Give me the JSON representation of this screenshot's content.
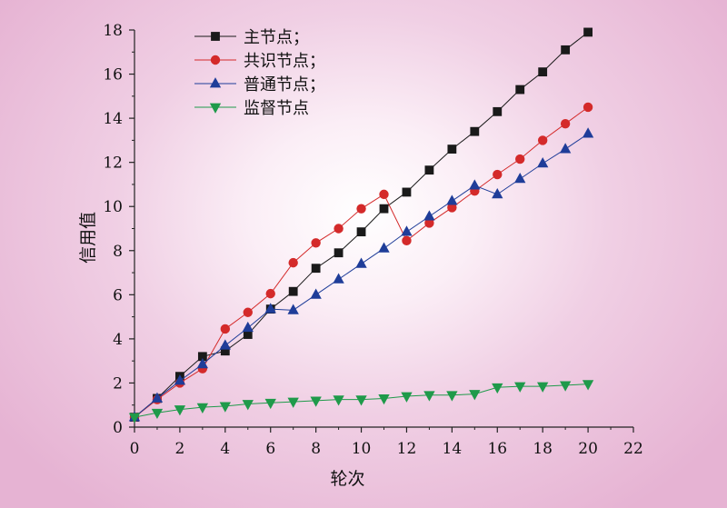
{
  "chart_data": {
    "type": "line",
    "title": "",
    "xlabel": "轮次",
    "ylabel": "信用值",
    "xlim": [
      0,
      22
    ],
    "ylim": [
      0,
      18
    ],
    "xticks": [
      0,
      2,
      4,
      6,
      8,
      10,
      12,
      14,
      16,
      18,
      20,
      22
    ],
    "yticks": [
      0,
      2,
      4,
      6,
      8,
      10,
      12,
      14,
      16,
      18
    ],
    "grid": false,
    "legend_position": "top-left",
    "x": [
      0,
      1,
      2,
      3,
      4,
      5,
      6,
      7,
      8,
      9,
      10,
      11,
      12,
      13,
      14,
      15,
      16,
      17,
      18,
      19,
      20
    ],
    "series": [
      {
        "name": "主节点；",
        "color": "#1a1a1a",
        "marker": "square",
        "values": [
          0.45,
          1.3,
          2.3,
          3.2,
          3.45,
          4.2,
          5.35,
          6.15,
          7.2,
          7.9,
          8.85,
          9.9,
          10.65,
          11.65,
          12.6,
          13.4,
          14.3,
          15.3,
          16.1,
          17.1,
          17.9
        ]
      },
      {
        "name": "共识节点；",
        "color": "#d42a2a",
        "marker": "circle",
        "values": [
          0.45,
          1.25,
          2.0,
          2.65,
          4.45,
          5.2,
          6.05,
          7.45,
          8.35,
          9.0,
          9.9,
          10.55,
          8.45,
          9.25,
          9.95,
          10.7,
          11.45,
          12.15,
          13.0,
          13.75,
          14.5
        ]
      },
      {
        "name": "普通节点；",
        "color": "#1f3d99",
        "marker": "triangle-up",
        "values": [
          0.45,
          1.3,
          2.1,
          2.85,
          3.7,
          4.5,
          5.35,
          5.3,
          6.0,
          6.7,
          7.4,
          8.1,
          8.85,
          9.55,
          10.25,
          10.95,
          10.55,
          11.25,
          11.95,
          12.6,
          13.3
        ]
      },
      {
        "name": "监督节点",
        "color": "#1f9a4a",
        "marker": "triangle-down",
        "values": [
          0.45,
          0.65,
          0.8,
          0.9,
          0.95,
          1.05,
          1.1,
          1.15,
          1.2,
          1.25,
          1.25,
          1.3,
          1.4,
          1.45,
          1.45,
          1.5,
          1.8,
          1.85,
          1.85,
          1.9,
          1.95
        ]
      }
    ]
  }
}
